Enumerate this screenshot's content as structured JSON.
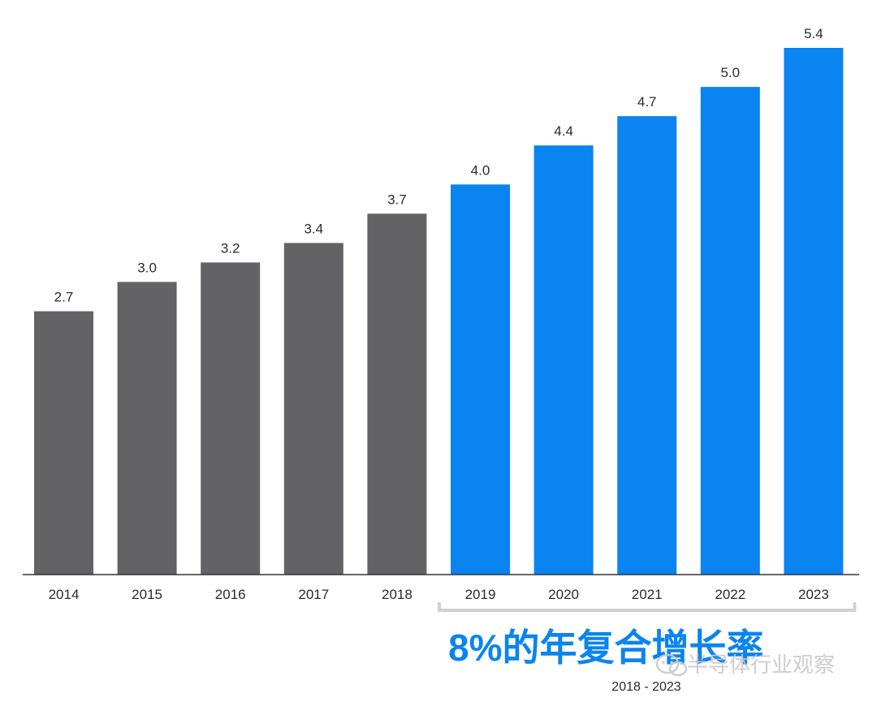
{
  "chart_data": {
    "type": "bar",
    "categories": [
      "2014",
      "2015",
      "2016",
      "2017",
      "2018",
      "2019",
      "2020",
      "2021",
      "2022",
      "2023"
    ],
    "values": [
      2.7,
      3.0,
      3.2,
      3.4,
      3.7,
      4.0,
      4.4,
      4.7,
      5.0,
      5.4
    ],
    "value_labels": [
      "2.7",
      "3.0",
      "3.2",
      "3.4",
      "3.7",
      "4.0",
      "4.4",
      "4.7",
      "5.0",
      "5.4"
    ],
    "bar_colors": [
      "#636366",
      "#636366",
      "#636366",
      "#636366",
      "#636366",
      "#0a84f0",
      "#0a84f0",
      "#0a84f0",
      "#0a84f0",
      "#0a84f0"
    ],
    "ylim": [
      0,
      5.4
    ],
    "grid": false,
    "annotation": {
      "text": "8%的年复合增长率",
      "period": "2018 - 2023",
      "bracket_from": "2019",
      "bracket_to": "2023",
      "color": "#0a84f0"
    }
  },
  "watermark": {
    "text": "半导体行业观察",
    "icon": "wechat-icon"
  },
  "colors": {
    "historical": "#636366",
    "forecast": "#0a84f0",
    "baseline": "#333333",
    "bracket": "#d0d0d0"
  }
}
